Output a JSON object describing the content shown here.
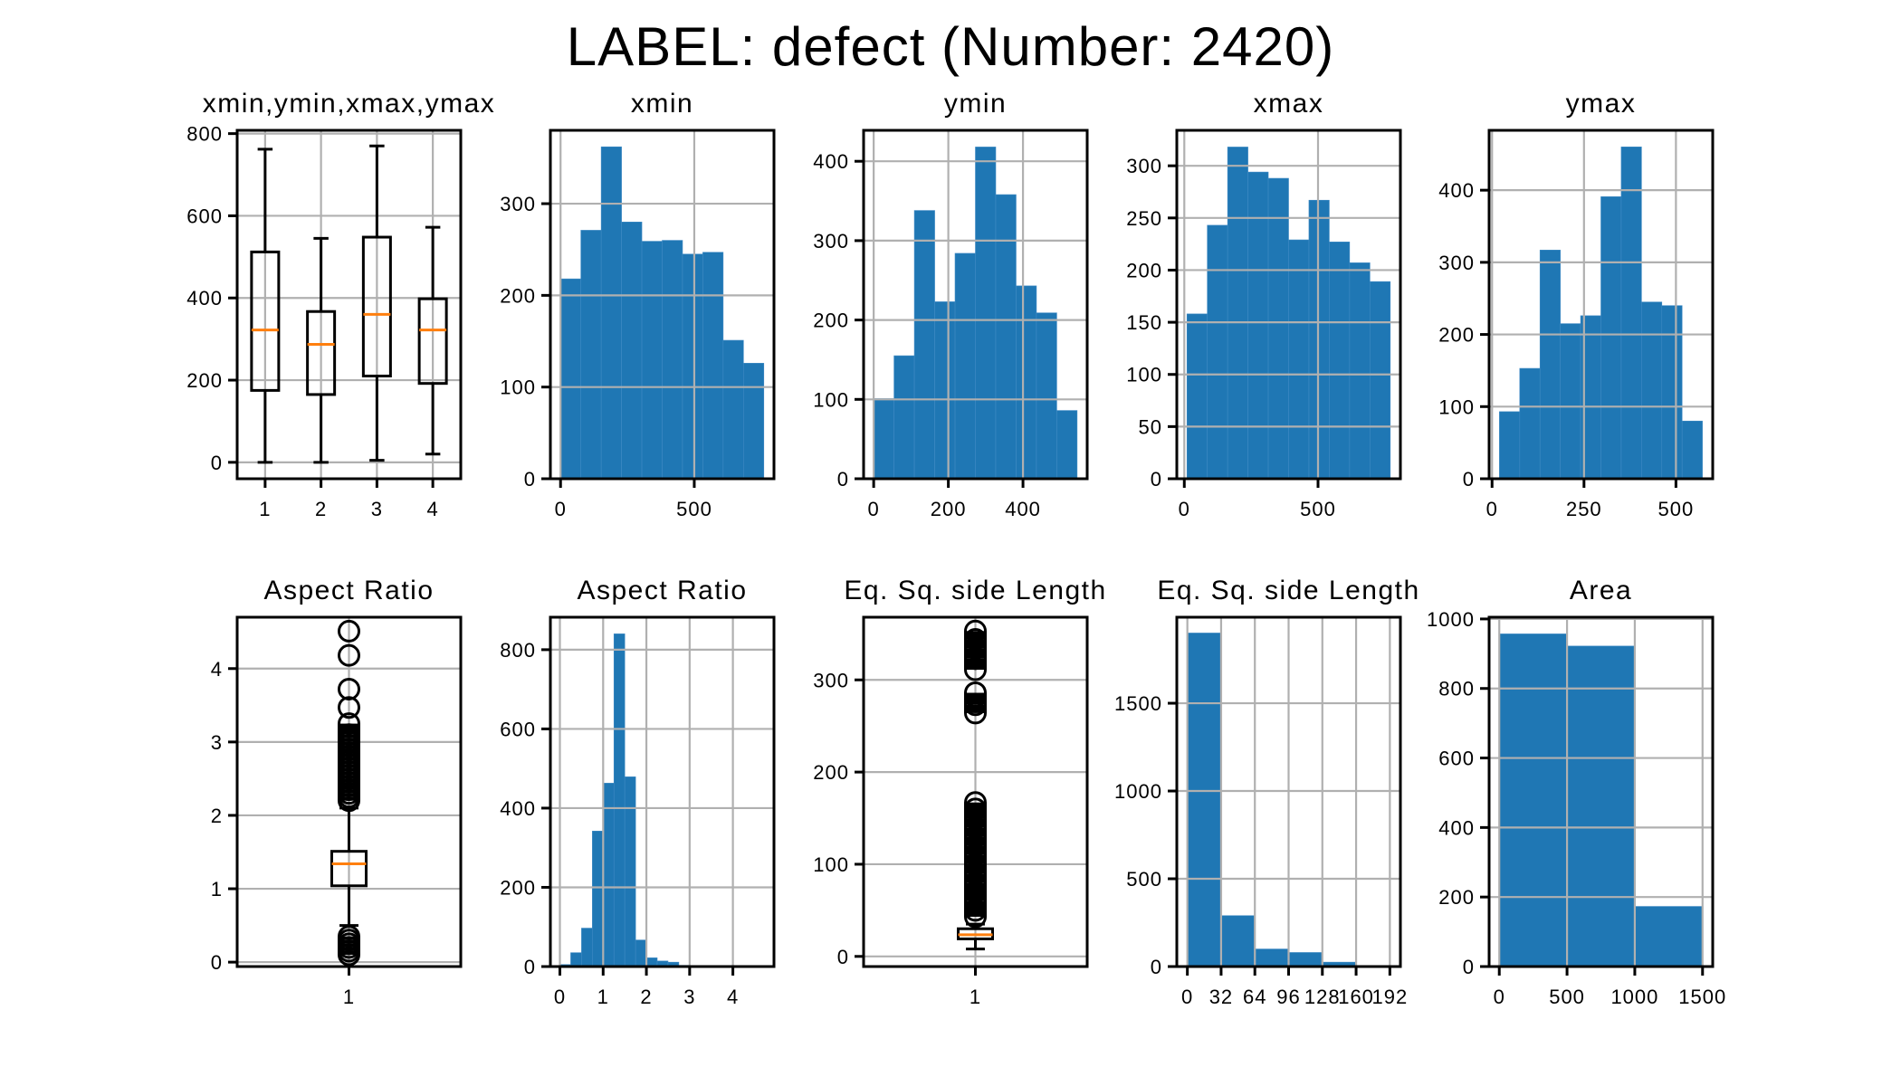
{
  "figure": {
    "suptitle": "LABEL: defect (Number: 2420)"
  },
  "colors": {
    "bar": "#1f77b4",
    "median": "#ff7f0e",
    "grid": "#b0b0b0",
    "axis": "#000000"
  },
  "chart_data": [
    {
      "type": "boxplot",
      "title": "xmin,ymin,xmax,ymax",
      "categories": [
        "1",
        "2",
        "3",
        "4"
      ],
      "boxes": [
        {
          "label": "1",
          "whislo": 0,
          "q1": 175,
          "median": 322,
          "q3": 512,
          "whishi": 762,
          "fliers": []
        },
        {
          "label": "2",
          "whislo": 0,
          "q1": 165,
          "median": 287,
          "q3": 367,
          "whishi": 545,
          "fliers": []
        },
        {
          "label": "3",
          "whislo": 5,
          "q1": 210,
          "median": 360,
          "q3": 548,
          "whishi": 770,
          "fliers": []
        },
        {
          "label": "4",
          "whislo": 20,
          "q1": 192,
          "median": 322,
          "q3": 398,
          "whishi": 572,
          "fliers": []
        }
      ],
      "ylim": [
        -40,
        808
      ],
      "yticks": [
        0,
        200,
        400,
        600,
        800
      ],
      "grid": true
    },
    {
      "type": "bar",
      "title": "xmin",
      "bin_edges": [
        0,
        76,
        152,
        228,
        304,
        380,
        456,
        532,
        608,
        684,
        760
      ],
      "values": [
        218,
        271,
        362,
        280,
        259,
        260,
        245,
        247,
        151,
        126
      ],
      "xlim": [
        -38,
        798
      ],
      "ylim": [
        0,
        380
      ],
      "xticks": [
        0,
        500
      ],
      "yticks": [
        0,
        100,
        200,
        300
      ],
      "grid": true
    },
    {
      "type": "bar",
      "title": "ymin",
      "bin_edges": [
        0,
        54.5,
        109,
        163.5,
        218,
        272.5,
        327,
        381.5,
        436,
        490.5,
        545
      ],
      "values": [
        101,
        155,
        338,
        223,
        284,
        418,
        358,
        243,
        209,
        86
      ],
      "xlim": [
        -27,
        572
      ],
      "ylim": [
        0,
        439
      ],
      "xticks": [
        0,
        200,
        400
      ],
      "yticks": [
        0,
        100,
        200,
        300,
        400
      ],
      "grid": true
    },
    {
      "type": "bar",
      "title": "xmax",
      "bin_edges": [
        10,
        86,
        162,
        238,
        314,
        390,
        466,
        542,
        618,
        694,
        770
      ],
      "values": [
        158,
        243,
        318,
        294,
        288,
        229,
        267,
        227,
        207,
        189
      ],
      "xlim": [
        -28,
        808
      ],
      "ylim": [
        0,
        334
      ],
      "xticks": [
        0,
        500
      ],
      "yticks": [
        0,
        50,
        100,
        150,
        200,
        250,
        300
      ],
      "grid": true
    },
    {
      "type": "bar",
      "title": "ymax",
      "bin_edges": [
        20,
        75.2,
        130.4,
        185.6,
        240.8,
        296,
        351.2,
        406.4,
        461.6,
        516.8,
        572
      ],
      "values": [
        93,
        153,
        317,
        215,
        226,
        391,
        460,
        245,
        240,
        80
      ],
      "xlim": [
        -8,
        600
      ],
      "ylim": [
        0,
        483
      ],
      "xticks": [
        0,
        250,
        500
      ],
      "yticks": [
        0,
        100,
        200,
        300,
        400
      ],
      "grid": true
    },
    {
      "type": "boxplot",
      "title": "Aspect Ratio",
      "categories": [
        "1"
      ],
      "boxes": [
        {
          "label": "1",
          "whislo": 0.5,
          "q1": 1.04,
          "median": 1.34,
          "q3": 1.51,
          "whishi": 2.1,
          "fliers": [
            0.1,
            0.15,
            0.2,
            0.25,
            0.3,
            0.35,
            2.2,
            2.25,
            2.3,
            2.35,
            2.4,
            2.45,
            2.5,
            2.55,
            2.6,
            2.65,
            2.7,
            2.75,
            2.8,
            2.85,
            2.9,
            2.95,
            3.0,
            3.05,
            3.1,
            3.25,
            3.47,
            3.72,
            4.18,
            4.51
          ]
        }
      ],
      "ylim": [
        -0.06,
        4.7
      ],
      "yticks": [
        0,
        1,
        2,
        3,
        4
      ],
      "grid": true
    },
    {
      "type": "bar",
      "title": "Aspect Ratio",
      "bin_edges": [
        0,
        0.25,
        0.5,
        0.75,
        1.0,
        1.25,
        1.5,
        1.75,
        2.0,
        2.25,
        2.5,
        2.75,
        3.0,
        3.25,
        3.5,
        3.75,
        4.0,
        4.25,
        4.5
      ],
      "values": [
        5,
        35,
        97,
        342,
        463,
        840,
        479,
        67,
        22,
        14,
        11,
        3,
        2,
        1,
        0,
        0,
        0,
        1
      ],
      "xlim": [
        -0.22,
        4.95
      ],
      "ylim": [
        0,
        882
      ],
      "xticks": [
        0,
        1,
        2,
        3,
        4
      ],
      "yticks": [
        0,
        200,
        400,
        600,
        800
      ],
      "grid": true
    },
    {
      "type": "boxplot",
      "title": "Eq. Sq. side Length",
      "categories": [
        "1"
      ],
      "boxes": [
        {
          "label": "1",
          "whislo": 8,
          "q1": 19,
          "median": 23.5,
          "q3": 30,
          "whishi": 35,
          "fliers": [
            43,
            50,
            60,
            70,
            80,
            90,
            100,
            110,
            120,
            130,
            140,
            150,
            160,
            167,
            264,
            273,
            286,
            311,
            323,
            334,
            344,
            353
          ]
        }
      ],
      "ylim": [
        -11,
        368
      ],
      "yticks": [
        0,
        100,
        200,
        300
      ],
      "grid": true
    },
    {
      "type": "bar",
      "title": "Eq. Sq. side Length",
      "bin_edges": [
        0,
        32,
        64,
        96,
        128,
        160,
        192
      ],
      "values": [
        1900,
        290,
        100,
        80,
        25,
        0
      ],
      "xlim": [
        -10,
        202
      ],
      "ylim": [
        0,
        1990
      ],
      "xticks": [
        0,
        32,
        64,
        96,
        128,
        160,
        192
      ],
      "yticks": [
        0,
        500,
        1000,
        1500
      ],
      "grid": true
    },
    {
      "type": "bar",
      "title": "Area",
      "bin_edges": [
        0,
        500,
        1000,
        1500
      ],
      "values": [
        957,
        922,
        173
      ],
      "xlim": [
        -75,
        1575
      ],
      "ylim": [
        0,
        1005
      ],
      "xticks": [
        0,
        500,
        1000,
        1500
      ],
      "yticks": [
        0,
        200,
        400,
        600,
        800,
        1000
      ],
      "grid": true
    }
  ]
}
